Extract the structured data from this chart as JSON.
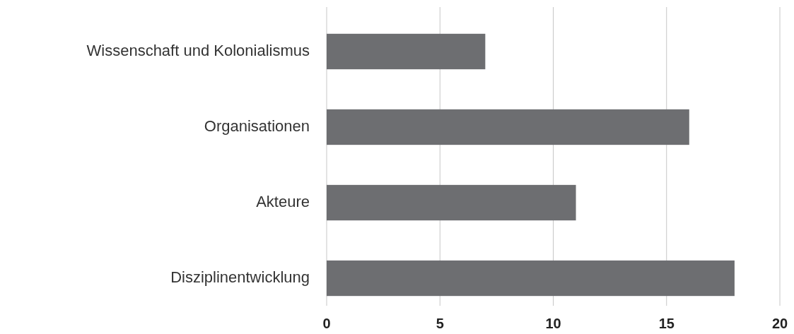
{
  "chart_data": {
    "type": "bar",
    "orientation": "horizontal",
    "categories": [
      "Wissenschaft und Kolonialismus",
      "Organisationen",
      "Akteure",
      "Disziplinentwicklung"
    ],
    "values": [
      7,
      16,
      11,
      18
    ],
    "color": "#6d6e71",
    "xlim": [
      0,
      20
    ],
    "xticks": [
      0,
      5,
      10,
      15,
      20
    ],
    "grid": "x"
  }
}
